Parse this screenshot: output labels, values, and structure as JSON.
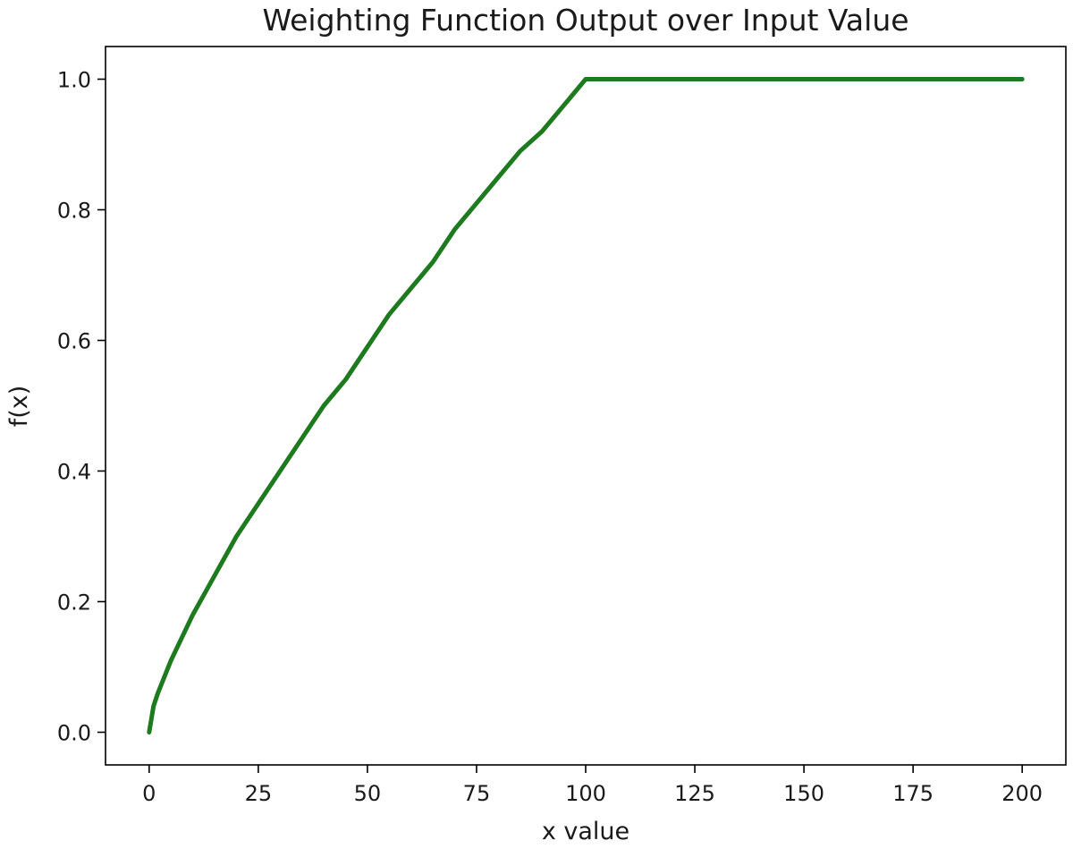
{
  "chart_data": {
    "type": "line",
    "title": "Weighting Function Output over Input Value",
    "xlabel": "x value",
    "ylabel": "f(x)",
    "xlim": [
      -10,
      210
    ],
    "ylim": [
      -0.05,
      1.05
    ],
    "xticks": [
      0,
      25,
      50,
      75,
      100,
      125,
      150,
      175,
      200
    ],
    "xtick_labels": [
      "0",
      "25",
      "50",
      "75",
      "100",
      "125",
      "150",
      "175",
      "200"
    ],
    "yticks": [
      0.0,
      0.2,
      0.4,
      0.6,
      0.8,
      1.0
    ],
    "ytick_labels": [
      "0.0",
      "0.2",
      "0.4",
      "0.6",
      "0.8",
      "1.0"
    ],
    "grid": false,
    "series": [
      {
        "color": "#1e7a1e",
        "x": [
          0,
          1,
          2,
          5,
          10,
          15,
          20,
          25,
          30,
          35,
          40,
          45,
          50,
          55,
          60,
          65,
          70,
          75,
          80,
          85,
          90,
          95,
          100,
          110,
          125,
          150,
          175,
          200
        ],
        "y": [
          0.0,
          0.04,
          0.06,
          0.11,
          0.18,
          0.24,
          0.3,
          0.35,
          0.4,
          0.45,
          0.5,
          0.54,
          0.59,
          0.64,
          0.68,
          0.72,
          0.77,
          0.81,
          0.85,
          0.89,
          0.92,
          0.96,
          1.0,
          1.0,
          1.0,
          1.0,
          1.0,
          1.0
        ]
      }
    ]
  }
}
